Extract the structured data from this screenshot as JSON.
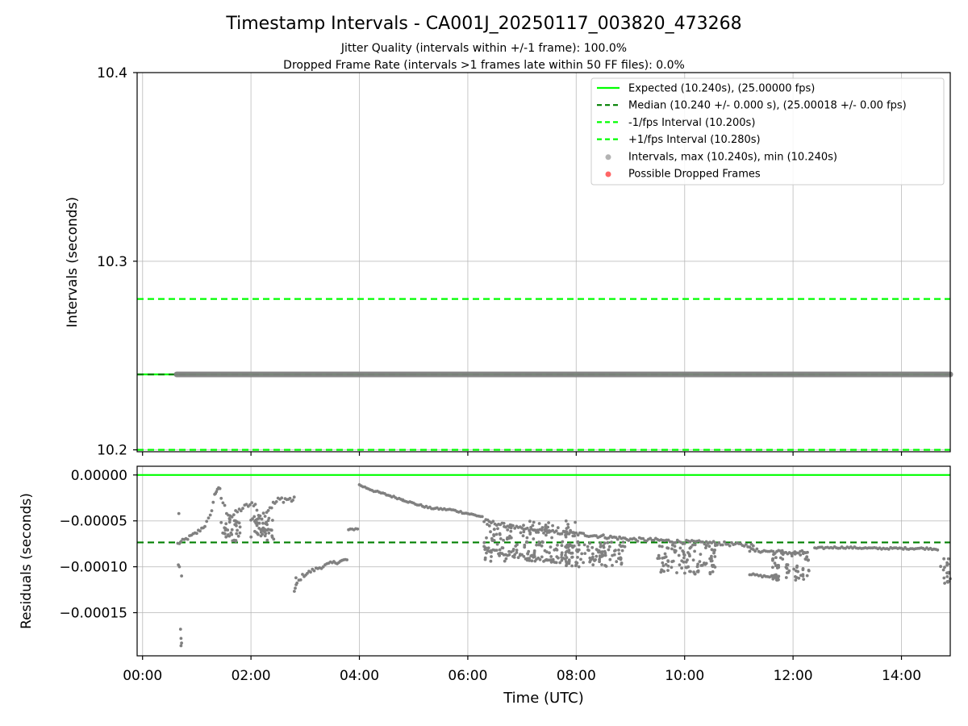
{
  "title": "Timestamp Intervals - CA001J_20250117_003820_473268",
  "subtitle_1": "Jitter Quality (intervals within +/-1 frame): 100.0%",
  "subtitle_2": "Dropped Frame Rate (intervals >1 frames late within 50 FF files): 0.0%",
  "colors": {
    "expected": "#00ff00",
    "median": "#008000",
    "bounds": "#00ff00",
    "intervals": "#808080",
    "dropped": "#ff0000",
    "grid": "#b0b0b0"
  },
  "chart_data": [
    {
      "type": "scatter",
      "ylabel": "Intervals (seconds)",
      "ylim": [
        10.199,
        10.4
      ],
      "yticks": [
        {
          "value": 10.2,
          "label": "10.2"
        },
        {
          "value": 10.3,
          "label": "10.3"
        },
        {
          "value": 10.4,
          "label": "10.4"
        }
      ],
      "xlim_hours": [
        -0.1,
        14.9
      ],
      "grid": true,
      "legend_position": "top-right",
      "hlines": [
        {
          "name": "Expected (10.240s), (25.00000 fps)",
          "y": 10.24,
          "style": "solid",
          "color_key": "expected"
        },
        {
          "name": "Median (10.240 +/- 0.000 s), (25.00018 +/- 0.00 fps)",
          "y": 10.24,
          "style": "dashed",
          "color_key": "median"
        },
        {
          "name": "-1/fps Interval (10.200s)",
          "y": 10.2,
          "style": "dashed",
          "color_key": "bounds"
        },
        {
          "name": "+1/fps Interval (10.280s)",
          "y": 10.28,
          "style": "dashed",
          "color_key": "bounds"
        }
      ],
      "scatter_legend": [
        {
          "name": "Intervals, max (10.240s), min (10.240s)",
          "color_key": "intervals"
        },
        {
          "name": "Possible Dropped Frames",
          "color_key": "dropped"
        }
      ],
      "intervals_series": {
        "x_start_hours": 0.63,
        "x_end_hours": 14.9,
        "y": 10.24
      },
      "dropped_frames": []
    },
    {
      "type": "scatter",
      "xlabel": "Time (UTC)",
      "ylabel": "Residuals (seconds)",
      "ylim": [
        -0.000197,
        9.5e-06
      ],
      "yticks": [
        {
          "value": 0.0,
          "label": "0.00000"
        },
        {
          "value": -5e-05,
          "label": "−0.00005"
        },
        {
          "value": -0.0001,
          "label": "−0.00010"
        },
        {
          "value": -0.00015,
          "label": "−0.00015"
        }
      ],
      "xlim_hours": [
        -0.1,
        14.9
      ],
      "xticks": [
        {
          "value": 0,
          "label": "00:00"
        },
        {
          "value": 2,
          "label": "02:00"
        },
        {
          "value": 4,
          "label": "04:00"
        },
        {
          "value": 6,
          "label": "06:00"
        },
        {
          "value": 8,
          "label": "08:00"
        },
        {
          "value": 10,
          "label": "10:00"
        },
        {
          "value": 12,
          "label": "12:00"
        },
        {
          "value": 14,
          "label": "14:00"
        }
      ],
      "grid": true,
      "hlines": [
        {
          "y": 0.0,
          "style": "solid",
          "color_key": "expected"
        },
        {
          "y": -7.35e-05,
          "style": "dashed",
          "color_key": "median"
        }
      ],
      "residual_segments": [
        {
          "x": [
            0.65,
            0.8,
            1.0,
            1.15,
            1.25,
            1.33,
            1.38,
            1.45
          ],
          "y": [
            -7.5e-05,
            -7e-05,
            -6.3e-05,
            -5.5e-05,
            -4.5e-05,
            -2.2e-05,
            -1.5e-05,
            -1.7e-05
          ],
          "spread": 2e-06
        },
        {
          "x": [
            1.45,
            1.55,
            1.65,
            1.75,
            1.85,
            1.95,
            2.05
          ],
          "y": [
            -2.5e-05,
            -4e-05,
            -4.5e-05,
            -4e-05,
            -3.6e-05,
            -3.3e-05,
            -3.2e-05
          ],
          "spread": 3e-06
        },
        {
          "x": [
            1.45,
            1.6,
            1.75
          ],
          "y": [
            -5.5e-05,
            -6.5e-05,
            -7.2e-05
          ],
          "spread": 8e-06
        },
        {
          "x": [
            2.05,
            2.2,
            2.35,
            2.5,
            2.6,
            2.75,
            2.82
          ],
          "y": [
            -3.3e-05,
            -4.5e-05,
            -3.5e-05,
            -2.8e-05,
            -2.6e-05,
            -2.7e-05,
            -2.8e-05
          ],
          "spread": 4e-06
        },
        {
          "x": [
            2.0,
            2.15,
            2.3,
            2.45
          ],
          "y": [
            -4.5e-05,
            -6e-05,
            -6.8e-05,
            -6.5e-05
          ],
          "spread": 7e-06
        },
        {
          "x": [
            2.8,
            2.85,
            2.95,
            3.1,
            3.3,
            3.5,
            3.65,
            3.8
          ],
          "y": [
            -0.000127,
            -0.000118,
            -0.00011,
            -0.000105,
            -0.0001,
            -9.6e-05,
            -9.4e-05,
            -9.2e-05
          ],
          "spread": 2e-06
        },
        {
          "x": [
            3.8,
            3.9,
            4.0
          ],
          "y": [
            -6e-05,
            -5.9e-05,
            -5.8e-05
          ],
          "spread": 1e-06
        },
        {
          "x": [
            4.0,
            4.3,
            4.7,
            5.0,
            5.3,
            5.7,
            6.0,
            6.3
          ],
          "y": [
            -1.1e-05,
            -1.8e-05,
            -2.5e-05,
            -3.1e-05,
            -3.6e-05,
            -3.8e-05,
            -4.2e-05,
            -4.6e-05
          ],
          "spread": 1e-06
        },
        {
          "x": [
            6.3,
            6.7,
            7.0,
            7.5,
            8.0,
            8.5,
            9.0,
            9.5,
            10.0,
            10.5,
            11.0,
            11.3
          ],
          "y": [
            -5e-05,
            -5.5e-05,
            -5.9e-05,
            -6.2e-05,
            -6.4e-05,
            -6.7e-05,
            -7e-05,
            -7.1e-05,
            -7.3e-05,
            -7.4e-05,
            -7.6e-05,
            -7.7e-05
          ],
          "spread": 2e-06
        },
        {
          "x": [
            6.3,
            6.7,
            7.0,
            7.5,
            7.9
          ],
          "y": [
            -8e-05,
            -8.5e-05,
            -8.8e-05,
            -9.2e-05,
            -9.4e-05
          ],
          "spread": 3e-06
        },
        {
          "x": [
            11.2,
            11.5,
            11.8,
            12.0,
            12.3
          ],
          "y": [
            -8.2e-05,
            -8.3e-05,
            -8.4e-05,
            -8.5e-05,
            -8.4e-05
          ],
          "spread": 2e-06
        },
        {
          "x": [
            12.4,
            12.7,
            13.0,
            13.5,
            14.0,
            14.5,
            14.7
          ],
          "y": [
            -8e-05,
            -7.9e-05,
            -7.9e-05,
            -8e-05,
            -8e-05,
            -8e-05,
            -8.1e-05
          ],
          "spread": 1e-06
        },
        {
          "x": [
            11.2,
            11.4,
            11.6,
            11.75
          ],
          "y": [
            -0.000108,
            -0.00011,
            -0.000111,
            -0.000112
          ],
          "spread": 1e-06
        }
      ],
      "residual_clouds": [
        {
          "x": [
            6.3,
            8.0
          ],
          "y": [
            -9.5e-05,
            -5e-05
          ]
        },
        {
          "x": [
            7.8,
            8.9
          ],
          "y": [
            -0.0001,
            -7.2e-05
          ]
        },
        {
          "x": [
            9.5,
            10.6
          ],
          "y": [
            -0.000108,
            -7.5e-05
          ]
        },
        {
          "x": [
            11.6,
            12.3
          ],
          "y": [
            -0.000115,
            -8.5e-05
          ]
        },
        {
          "x": [
            14.7,
            14.9
          ],
          "y": [
            -0.000118,
            -8.8e-05
          ]
        },
        {
          "x": [
            1.5,
            1.8
          ],
          "y": [
            -7.2e-05,
            -4.5e-05
          ]
        },
        {
          "x": [
            2.0,
            2.4
          ],
          "y": [
            -6.8e-05,
            -4.5e-05
          ]
        }
      ],
      "residual_points": [
        {
          "x": 0.67,
          "y": -4.2e-05
        },
        {
          "x": 0.66,
          "y": -9.8e-05
        },
        {
          "x": 0.68,
          "y": -0.0001
        },
        {
          "x": 0.72,
          "y": -0.00011
        },
        {
          "x": 0.7,
          "y": -0.000168
        },
        {
          "x": 0.71,
          "y": -0.000178
        },
        {
          "x": 0.72,
          "y": -0.000183
        },
        {
          "x": 0.71,
          "y": -0.000186
        },
        {
          "x": 2.83,
          "y": -0.000112
        },
        {
          "x": 4.8,
          "y": -2.7e-05
        }
      ]
    }
  ]
}
